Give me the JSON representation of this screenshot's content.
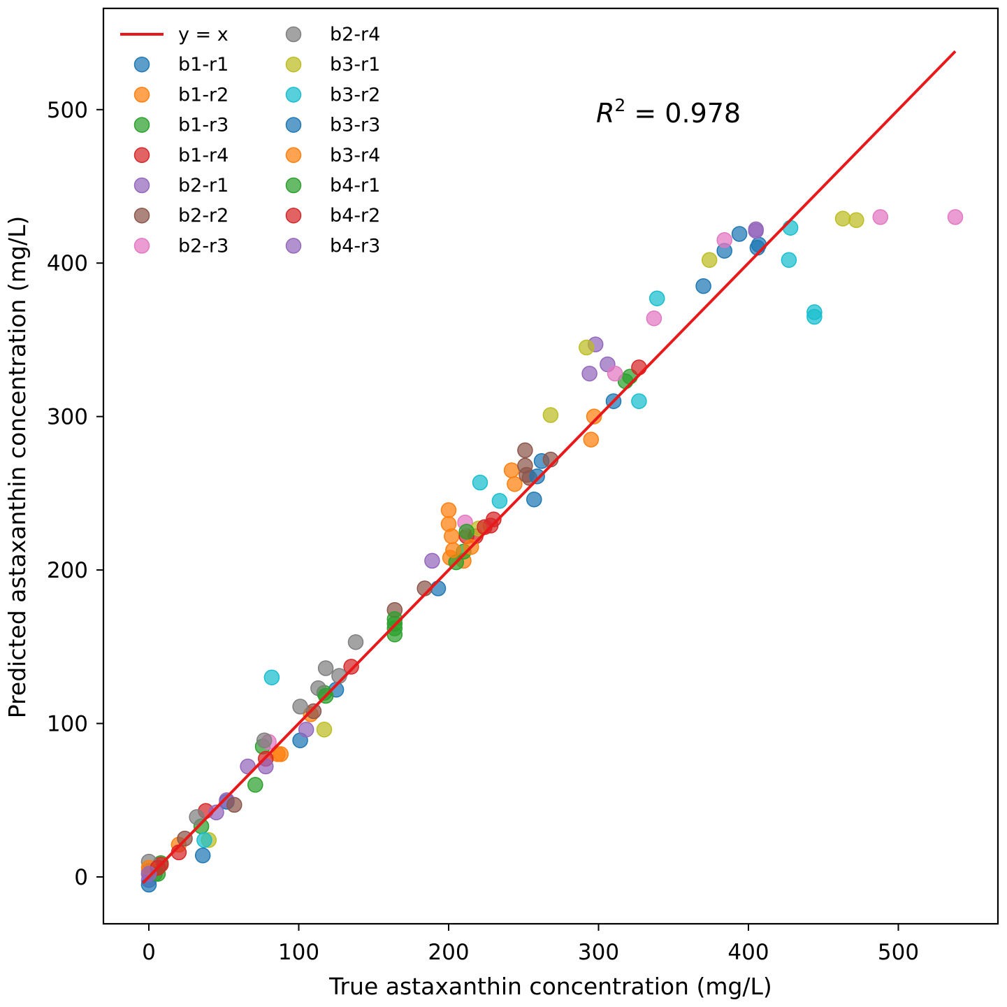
{
  "chart_data": {
    "type": "scatter",
    "title": "",
    "xlabel": "True astaxanthin concentration (mg/L)",
    "ylabel": "Predicted astaxanthin concentration (mg/L)",
    "xlim": [
      -30,
      565
    ],
    "ylim": [
      -30,
      565
    ],
    "xticks": [
      0,
      100,
      200,
      300,
      400,
      500
    ],
    "yticks": [
      0,
      100,
      200,
      300,
      400,
      500
    ],
    "grid": false,
    "legend_position": "top-left",
    "annotation": {
      "prefix": "R",
      "sup": "2",
      "suffix": " = 0.978"
    },
    "reference_line": {
      "name": "y = x",
      "color": "#e8191b",
      "x": [
        -4,
        538
      ],
      "y": [
        -4,
        538
      ]
    },
    "series": [
      {
        "name": "b1-r1",
        "color": "#1f77b4",
        "x": [
          0,
          52,
          101,
          125,
          193,
          262,
          257,
          310,
          370,
          384,
          394,
          407,
          406
        ],
        "y": [
          2,
          49,
          89,
          122,
          188,
          271,
          246,
          310,
          385,
          408,
          419,
          412,
          410
        ]
      },
      {
        "name": "b1-r2",
        "color": "#ff7f0e",
        "x": [
          0,
          20,
          108,
          200,
          200,
          202,
          201,
          210,
          242,
          244,
          297,
          295,
          86
        ],
        "y": [
          4,
          21,
          106,
          239,
          230,
          222,
          208,
          206,
          265,
          256,
          300,
          285,
          80
        ]
      },
      {
        "name": "b1-r3",
        "color": "#2ca02c",
        "x": [
          4,
          8,
          35,
          71,
          76,
          117,
          164,
          164,
          164,
          205,
          210,
          318,
          321
        ],
        "y": [
          2,
          9,
          33,
          60,
          85,
          120,
          165,
          158,
          162,
          205,
          212,
          323,
          326
        ]
      },
      {
        "name": "b1-r4",
        "color": "#d62728",
        "x": [
          2,
          8,
          20,
          38,
          78,
          135,
          212,
          218,
          228,
          230,
          327
        ],
        "y": [
          4,
          8,
          16,
          43,
          77,
          137,
          222,
          222,
          229,
          233,
          332
        ]
      },
      {
        "name": "b2-r1",
        "color": "#9467bd",
        "x": [
          0,
          45,
          52,
          66,
          78,
          105,
          189,
          294,
          298,
          306,
          405
        ],
        "y": [
          -2,
          42,
          50,
          72,
          72,
          96,
          206,
          328,
          347,
          334,
          422
        ]
      },
      {
        "name": "b2-r2",
        "color": "#8c564b",
        "x": [
          24,
          57,
          110,
          184,
          164,
          251,
          251,
          252,
          254,
          268
        ],
        "y": [
          25,
          47,
          108,
          188,
          174,
          278,
          268,
          262,
          260,
          272
        ]
      },
      {
        "name": "b2-r3",
        "color": "#e377c2",
        "x": [
          80,
          211,
          311,
          337,
          384,
          488,
          538
        ],
        "y": [
          88,
          231,
          328,
          364,
          415,
          430,
          430
        ]
      },
      {
        "name": "b2-r4",
        "color": "#7f7f7f",
        "x": [
          0,
          32,
          77,
          101,
          113,
          118,
          127,
          138
        ],
        "y": [
          10,
          39,
          89,
          111,
          123,
          136,
          131,
          153
        ]
      },
      {
        "name": "b3-r1",
        "color": "#bcbd22",
        "x": [
          40,
          117,
          220,
          268,
          292,
          374,
          463,
          472
        ],
        "y": [
          24,
          96,
          227,
          301,
          345,
          402,
          429,
          428
        ]
      },
      {
        "name": "b3-r2",
        "color": "#17becf",
        "x": [
          37,
          82,
          221,
          234,
          327,
          339,
          428,
          427,
          444,
          444
        ],
        "y": [
          24,
          130,
          257,
          245,
          310,
          377,
          423,
          402,
          368,
          365
        ]
      },
      {
        "name": "b3-r3",
        "color": "#1f77b4",
        "x": [
          0,
          36,
          259
        ],
        "y": [
          -5,
          14,
          261
        ]
      },
      {
        "name": "b3-r4",
        "color": "#ff7f0e",
        "x": [
          0,
          88,
          203,
          215
        ],
        "y": [
          6,
          80,
          213,
          215
        ]
      },
      {
        "name": "b4-r1",
        "color": "#2ca02c",
        "x": [
          6,
          118,
          164,
          212
        ],
        "y": [
          2,
          118,
          168,
          225
        ]
      },
      {
        "name": "b4-r2",
        "color": "#d62728",
        "x": [
          6,
          224
        ],
        "y": [
          6,
          228
        ]
      },
      {
        "name": "b4-r3",
        "color": "#9467bd",
        "x": [
          0,
          405
        ],
        "y": [
          2,
          421
        ]
      }
    ]
  }
}
